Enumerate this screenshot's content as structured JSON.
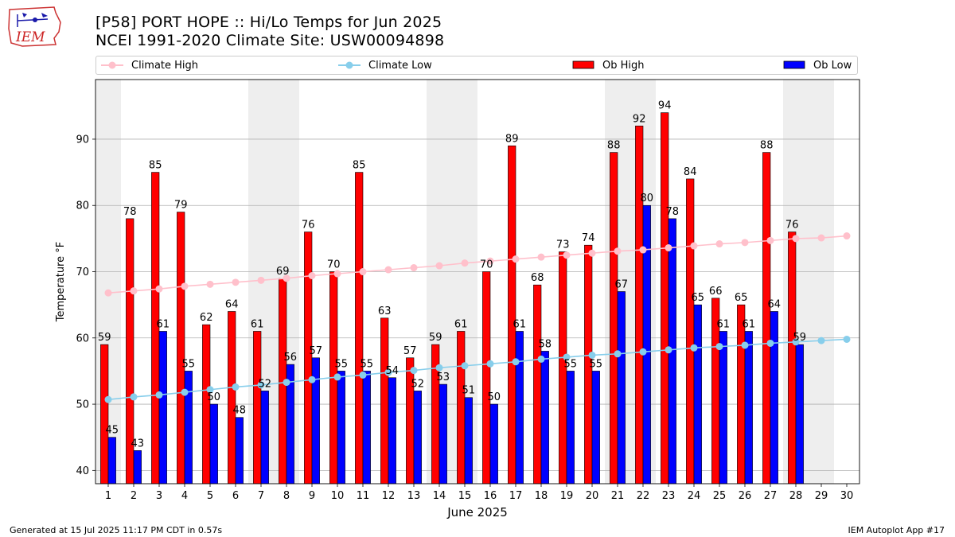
{
  "logo": {
    "text": "IEM"
  },
  "title_line1": "[P58] PORT HOPE :: Hi/Lo Temps for Jun 2025",
  "title_line2": "NCEI 1991-2020 Climate Site: USW00094898",
  "legend": {
    "climate_high": "Climate High",
    "climate_low": "Climate Low",
    "ob_high": "Ob High",
    "ob_low": "Ob Low"
  },
  "colors": {
    "ob_high": "#ff0000",
    "ob_low": "#0000ff",
    "climate_high": "#ffc0cb",
    "climate_low": "#87ceeb",
    "weekend_shade": "#eeeeee"
  },
  "footer_left": "Generated at 15 Jul 2025 11:17 PM CDT in 0.57s",
  "footer_right": "IEM Autoplot App #17",
  "chart_data": {
    "type": "bar",
    "xlabel": "June 2025",
    "ylabel": "Temperature °F",
    "ylim": [
      38,
      99
    ],
    "yticks": [
      40,
      50,
      60,
      70,
      80,
      90
    ],
    "grid": "horizontal",
    "legend_position": "top",
    "categories": [
      "1",
      "2",
      "3",
      "4",
      "5",
      "6",
      "7",
      "8",
      "9",
      "10",
      "11",
      "12",
      "13",
      "14",
      "15",
      "16",
      "17",
      "18",
      "19",
      "20",
      "21",
      "22",
      "23",
      "24",
      "25",
      "26",
      "27",
      "28",
      "29",
      "30"
    ],
    "weekend_days": [
      1,
      7,
      8,
      14,
      15,
      21,
      22,
      28,
      29
    ],
    "series": [
      {
        "name": "Ob High",
        "kind": "bar",
        "values": [
          59,
          78,
          85,
          79,
          62,
          64,
          61,
          69,
          76,
          70,
          85,
          63,
          57,
          59,
          61,
          70,
          89,
          68,
          73,
          74,
          88,
          92,
          94,
          84,
          66,
          65,
          88,
          76,
          null,
          null
        ]
      },
      {
        "name": "Ob Low",
        "kind": "bar",
        "values": [
          45,
          43,
          61,
          55,
          50,
          48,
          52,
          56,
          57,
          55,
          55,
          54,
          52,
          53,
          51,
          50,
          61,
          58,
          55,
          55,
          67,
          80,
          78,
          65,
          61,
          61,
          64,
          59,
          null,
          null
        ]
      },
      {
        "name": "Climate High",
        "kind": "line",
        "values": [
          66.8,
          67.1,
          67.4,
          67.8,
          68.1,
          68.4,
          68.7,
          69.0,
          69.4,
          69.7,
          70.0,
          70.3,
          70.6,
          70.9,
          71.3,
          71.6,
          71.9,
          72.2,
          72.5,
          72.8,
          73.1,
          73.3,
          73.6,
          73.9,
          74.2,
          74.4,
          74.7,
          75.0,
          75.1,
          75.4
        ]
      },
      {
        "name": "Climate Low",
        "kind": "line",
        "values": [
          50.7,
          51.1,
          51.4,
          51.8,
          52.2,
          52.6,
          52.9,
          53.3,
          53.7,
          54.1,
          54.4,
          54.8,
          55.1,
          55.5,
          55.8,
          56.1,
          56.4,
          56.8,
          57.1,
          57.4,
          57.6,
          57.9,
          58.2,
          58.5,
          58.7,
          58.9,
          59.2,
          59.4,
          59.6,
          59.8
        ]
      }
    ]
  }
}
